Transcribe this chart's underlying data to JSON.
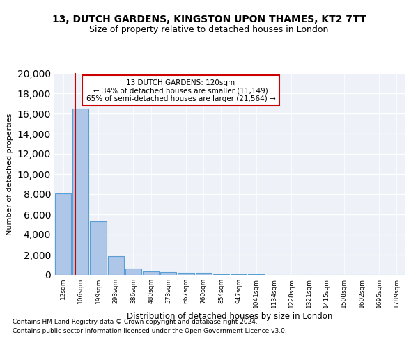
{
  "title": "13, DUTCH GARDENS, KINGSTON UPON THAMES, KT2 7TT",
  "subtitle": "Size of property relative to detached houses in London",
  "xlabel": "Distribution of detached houses by size in London",
  "ylabel": "Number of detached properties",
  "bin_labels": [
    "12sqm",
    "106sqm",
    "199sqm",
    "293sqm",
    "386sqm",
    "480sqm",
    "573sqm",
    "667sqm",
    "760sqm",
    "854sqm",
    "947sqm",
    "1041sqm",
    "1134sqm",
    "1228sqm",
    "1321sqm",
    "1415sqm",
    "1508sqm",
    "1602sqm",
    "1695sqm",
    "1789sqm"
  ],
  "bar_values": [
    8100,
    16500,
    5300,
    1850,
    650,
    350,
    250,
    200,
    200,
    100,
    60,
    40,
    25,
    15,
    10,
    8,
    5,
    4,
    3,
    2
  ],
  "bar_color": "#aec6e8",
  "bar_edge_color": "#5a9fd4",
  "property_size": 120,
  "property_name": "13 DUTCH GARDENS: 120sqm",
  "pct_smaller": 34,
  "n_smaller": 11149,
  "pct_larger": 65,
  "n_larger": 21564,
  "red_line_color": "#cc0000",
  "annotation_box_color": "#cc0000",
  "ylim": [
    0,
    20000
  ],
  "yticks": [
    0,
    2000,
    4000,
    6000,
    8000,
    10000,
    12000,
    14000,
    16000,
    18000,
    20000
  ],
  "footer_line1": "Contains HM Land Registry data © Crown copyright and database right 2024.",
  "footer_line2": "Contains public sector information licensed under the Open Government Licence v3.0.",
  "plot_bg_color": "#eef2f8"
}
